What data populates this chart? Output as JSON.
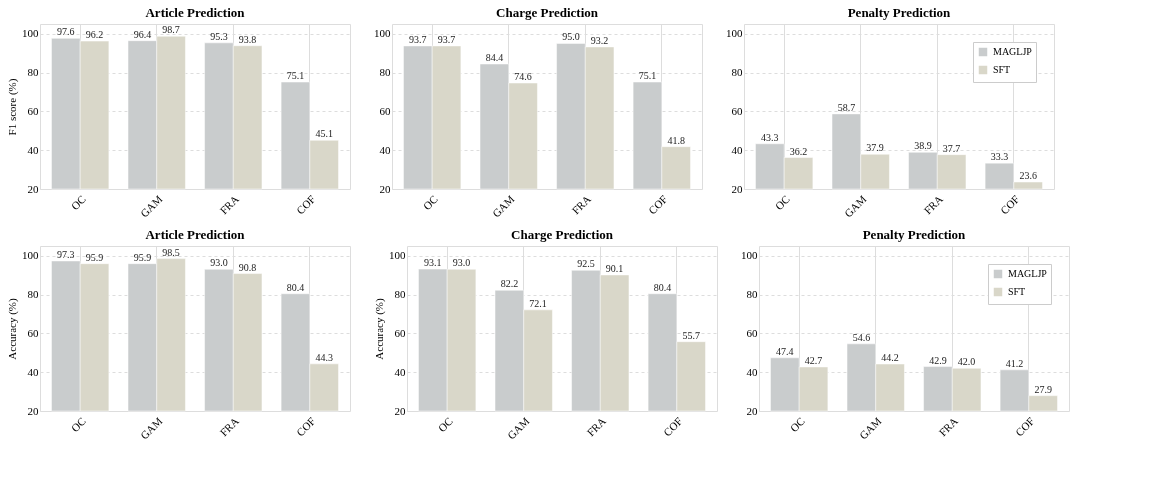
{
  "chart_data": [
    {
      "type": "bar",
      "title": "Article Prediction",
      "ylabel": "F1 score (%)",
      "categories": [
        "OC",
        "GAM",
        "FRA",
        "COF"
      ],
      "ylim": [
        20,
        105
      ],
      "yticks": [
        20,
        40,
        60,
        80,
        100
      ],
      "grid": true,
      "data_labels": true,
      "series": [
        {
          "color": "#c9cccd",
          "values": [
            97.6,
            96.4,
            95.3,
            75.1
          ]
        },
        {
          "color": "#d9d7c9",
          "values": [
            96.2,
            98.7,
            93.8,
            45.1
          ]
        }
      ]
    },
    {
      "type": "bar",
      "title": "Charge Prediction",
      "categories": [
        "OC",
        "GAM",
        "FRA",
        "COF"
      ],
      "ylim": [
        20,
        105
      ],
      "yticks": [
        20,
        40,
        60,
        80,
        100
      ],
      "grid": true,
      "data_labels": true,
      "series": [
        {
          "color": "#c9cccd",
          "values": [
            93.7,
            84.4,
            95.0,
            75.1
          ],
          "value_labels": [
            "93.7",
            "84.4",
            "95.0",
            "75.1"
          ]
        },
        {
          "color": "#d9d7c9",
          "values": [
            93.7,
            74.6,
            93.2,
            41.8
          ]
        }
      ]
    },
    {
      "type": "bar",
      "title": "Penalty Prediction",
      "categories": [
        "OC",
        "GAM",
        "FRA",
        "COF"
      ],
      "ylim": [
        20,
        105
      ],
      "yticks": [
        20,
        40,
        60,
        80,
        100
      ],
      "grid": true,
      "legend": "top right",
      "data_labels": true,
      "series": [
        {
          "name": "MAGLJP",
          "color": "#c9cccd",
          "values": [
            43.3,
            58.7,
            38.9,
            33.3
          ]
        },
        {
          "name": "SFT",
          "color": "#d9d7c9",
          "values": [
            36.2,
            37.9,
            37.7,
            23.6
          ]
        }
      ]
    },
    {
      "type": "bar",
      "title": "Article Prediction",
      "ylabel": "Accuracy (%)",
      "categories": [
        "OC",
        "GAM",
        "FRA",
        "COF"
      ],
      "ylim": [
        20,
        105
      ],
      "yticks": [
        20,
        40,
        60,
        80,
        100
      ],
      "grid": true,
      "data_labels": true,
      "series": [
        {
          "color": "#c9cccd",
          "values": [
            97.3,
            95.9,
            93.0,
            80.4
          ],
          "value_labels": [
            "97.3",
            "95.9",
            "93.0",
            "80.4"
          ]
        },
        {
          "color": "#d9d7c9",
          "values": [
            95.9,
            98.5,
            90.8,
            44.3
          ]
        }
      ]
    },
    {
      "type": "bar",
      "title": "Charge Prediction",
      "ylabel": "Accuracy (%)",
      "categories": [
        "OC",
        "GAM",
        "FRA",
        "COF"
      ],
      "ylim": [
        20,
        105
      ],
      "yticks": [
        20,
        40,
        60,
        80,
        100
      ],
      "grid": true,
      "data_labels": true,
      "series": [
        {
          "color": "#c9cccd",
          "values": [
            93.1,
            82.2,
            92.5,
            80.4
          ]
        },
        {
          "color": "#d9d7c9",
          "values": [
            93.0,
            72.1,
            90.1,
            55.7
          ],
          "value_labels": [
            "93.0",
            "72.1",
            "90.1",
            "55.7"
          ]
        }
      ]
    },
    {
      "type": "bar",
      "title": "Penalty Prediction",
      "categories": [
        "OC",
        "GAM",
        "FRA",
        "COF"
      ],
      "ylim": [
        20,
        105
      ],
      "yticks": [
        20,
        40,
        60,
        80,
        100
      ],
      "grid": true,
      "legend": "top right",
      "data_labels": true,
      "series": [
        {
          "name": "MAGLJP",
          "color": "#c9cccd",
          "values": [
            47.4,
            54.6,
            42.9,
            41.2
          ]
        },
        {
          "name": "SFT",
          "color": "#d9d7c9",
          "values": [
            42.7,
            44.2,
            42.0,
            27.9
          ],
          "value_labels": [
            "42.7",
            "44.2",
            "42.0",
            "27.9"
          ]
        }
      ]
    }
  ]
}
